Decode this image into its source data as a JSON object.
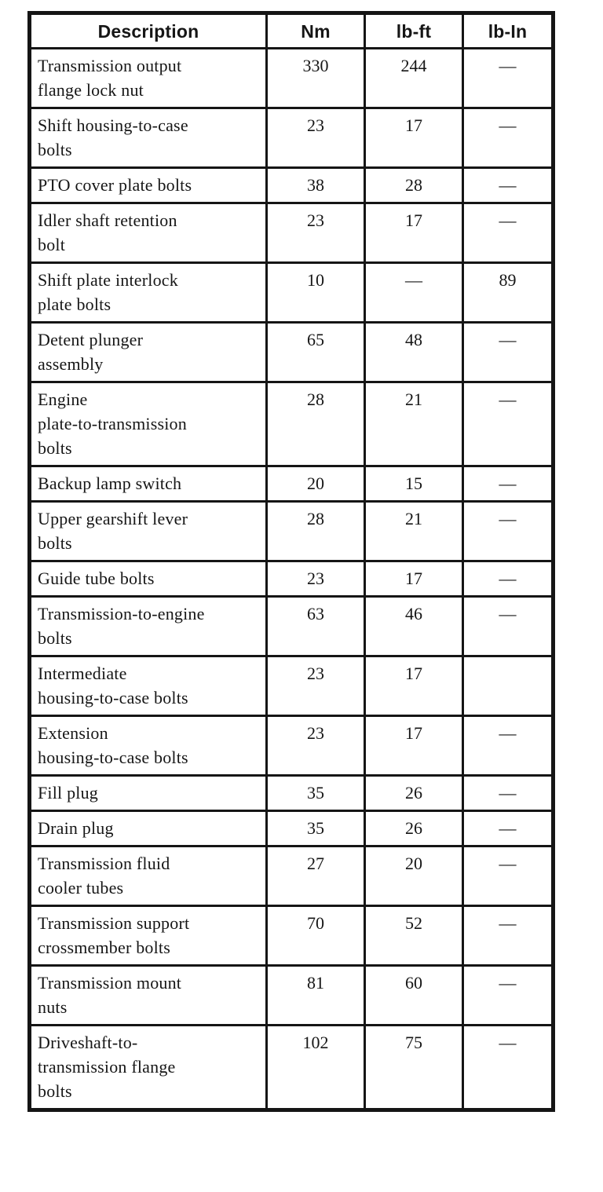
{
  "colors": {
    "ink": "#161616",
    "paper": "#ffffff"
  },
  "table": {
    "headers": [
      "Description",
      "Nm",
      "lb-ft",
      "lb-In"
    ],
    "rows": [
      {
        "description": "Transmission output\nflange lock nut",
        "nm": "330",
        "lb_ft": "244",
        "lb_in": "—"
      },
      {
        "description": "Shift housing-to-case\nbolts",
        "nm": "23",
        "lb_ft": "17",
        "lb_in": "—"
      },
      {
        "description": "PTO cover plate bolts",
        "nm": "38",
        "lb_ft": "28",
        "lb_in": "—"
      },
      {
        "description": "Idler shaft retention\nbolt",
        "nm": "23",
        "lb_ft": "17",
        "lb_in": "—"
      },
      {
        "description": "Shift plate interlock\nplate bolts",
        "nm": "10",
        "lb_ft": "—",
        "lb_in": "89"
      },
      {
        "description": "Detent plunger\nassembly",
        "nm": "65",
        "lb_ft": "48",
        "lb_in": "—"
      },
      {
        "description": "Engine\nplate-to-transmission\nbolts",
        "nm": "28",
        "lb_ft": "21",
        "lb_in": "—"
      },
      {
        "description": "Backup lamp switch",
        "nm": "20",
        "lb_ft": "15",
        "lb_in": "—"
      },
      {
        "description": "Upper gearshift lever\nbolts",
        "nm": "28",
        "lb_ft": "21",
        "lb_in": "—"
      },
      {
        "description": "Guide tube bolts",
        "nm": "23",
        "lb_ft": "17",
        "lb_in": "—"
      },
      {
        "description": "Transmission-to-engine\nbolts",
        "nm": "63",
        "lb_ft": "46",
        "lb_in": "—"
      },
      {
        "description": "Intermediate\nhousing-to-case bolts",
        "nm": "23",
        "lb_ft": "17",
        "lb_in": ""
      },
      {
        "description": "Extension\nhousing-to-case bolts",
        "nm": "23",
        "lb_ft": "17",
        "lb_in": "—"
      },
      {
        "description": "Fill plug",
        "nm": "35",
        "lb_ft": "26",
        "lb_in": "—"
      },
      {
        "description": "Drain plug",
        "nm": "35",
        "lb_ft": "26",
        "lb_in": "—"
      },
      {
        "description": "Transmission fluid\ncooler tubes",
        "nm": "27",
        "lb_ft": "20",
        "lb_in": "—"
      },
      {
        "description": "Transmission support\ncrossmember bolts",
        "nm": "70",
        "lb_ft": "52",
        "lb_in": "—"
      },
      {
        "description": "Transmission mount\nnuts",
        "nm": "81",
        "lb_ft": "60",
        "lb_in": "—"
      },
      {
        "description": "Driveshaft-to-\ntransmission flange\nbolts",
        "nm": "102",
        "lb_ft": "75",
        "lb_in": "—"
      }
    ]
  }
}
